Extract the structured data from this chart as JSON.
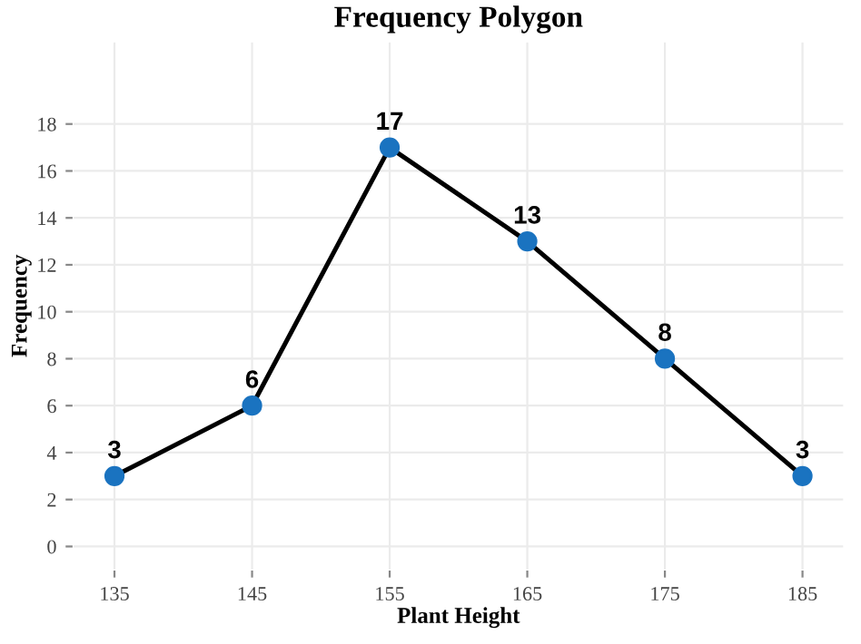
{
  "chart_data": {
    "type": "line",
    "title": "Frequency Polygon",
    "xlabel": "Plant Height",
    "ylabel": "Frequency",
    "x": [
      135,
      145,
      155,
      165,
      175,
      185
    ],
    "series": [
      {
        "color": "#000000",
        "values": [
          3,
          6,
          17,
          13,
          8,
          3
        ]
      }
    ],
    "marker": "circle",
    "line_style": "solid",
    "data_labels": true,
    "grid": true,
    "xlim": [
      132,
      188
    ],
    "xticks": [
      135,
      145,
      155,
      165,
      175,
      185
    ],
    "ylim": [
      -1,
      21.5
    ],
    "yticks": [
      0,
      2,
      4,
      6,
      8,
      10,
      12,
      14,
      16,
      18
    ]
  }
}
